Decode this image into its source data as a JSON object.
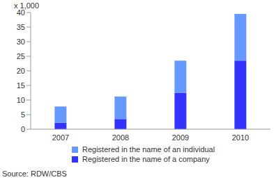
{
  "chart_data": {
    "type": "bar",
    "stacked": true,
    "y_label": "x 1,000",
    "source": "Source: RDW/CBS",
    "categories": [
      "2007",
      "2008",
      "2009",
      "2010"
    ],
    "series": [
      {
        "name": "Registered in the name of a company",
        "color": "#3333ff",
        "values": [
          2.2,
          3.5,
          12.5,
          23.5
        ]
      },
      {
        "name": "Registered in the name of an individual",
        "color": "#6699ff",
        "values": [
          5.6,
          7.7,
          11,
          16
        ]
      }
    ],
    "ylim": [
      0,
      40
    ],
    "yticks": [
      0,
      5,
      10,
      15,
      20,
      25,
      30,
      35,
      40
    ],
    "grid": false,
    "legend": "bottom"
  }
}
